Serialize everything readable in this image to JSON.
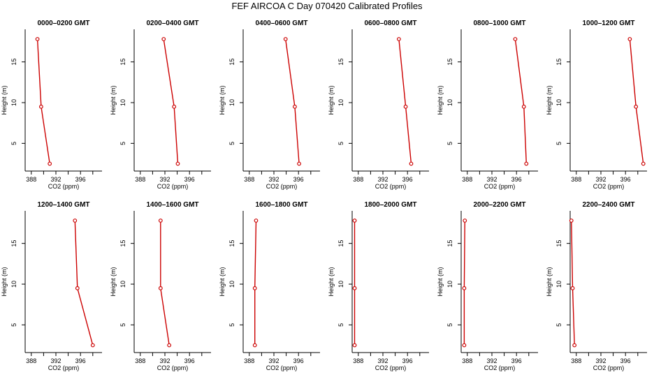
{
  "page": {
    "title": "FEF AIRCOA C  Day 070420  Calibrated Profiles"
  },
  "style": {
    "series_color": "#cc0000",
    "axis_color": "#000000"
  },
  "chart_data": [
    {
      "type": "line",
      "title": "0000–0200 GMT",
      "xlabel": "CO2 (ppm)",
      "ylabel": "Height (m)",
      "xlim": [
        387,
        399.5
      ],
      "ylim": [
        1.6,
        19
      ],
      "x_ticks": [
        388,
        390,
        392,
        394,
        396,
        398
      ],
      "x_tick_labels": [
        "388",
        "",
        "392",
        "",
        "396",
        ""
      ],
      "y_ticks": [
        5,
        10,
        15
      ],
      "y_tick_labels": [
        "5",
        "10",
        "15"
      ],
      "grid": false,
      "series": [
        {
          "points": [
            [
              389.0,
              17.8
            ],
            [
              389.6,
              9.5
            ],
            [
              391.0,
              2.5
            ]
          ]
        }
      ]
    },
    {
      "type": "line",
      "title": "0200–0400 GMT",
      "xlabel": "CO2 (ppm)",
      "ylabel": "Height (m)",
      "xlim": [
        387,
        399.5
      ],
      "ylim": [
        1.6,
        19
      ],
      "x_ticks": [
        388,
        390,
        392,
        394,
        396,
        398
      ],
      "x_tick_labels": [
        "388",
        "",
        "392",
        "",
        "396",
        ""
      ],
      "y_ticks": [
        5,
        10,
        15
      ],
      "y_tick_labels": [
        "5",
        "10",
        "15"
      ],
      "grid": false,
      "series": [
        {
          "points": [
            [
              391.8,
              17.8
            ],
            [
              393.5,
              9.5
            ],
            [
              394.1,
              2.5
            ]
          ]
        }
      ]
    },
    {
      "type": "line",
      "title": "0400–0600 GMT",
      "xlabel": "CO2 (ppm)",
      "ylabel": "Height (m)",
      "xlim": [
        387,
        399.5
      ],
      "ylim": [
        1.6,
        19
      ],
      "x_ticks": [
        388,
        390,
        392,
        394,
        396,
        398
      ],
      "x_tick_labels": [
        "388",
        "",
        "392",
        "",
        "396",
        ""
      ],
      "y_ticks": [
        5,
        10,
        15
      ],
      "y_tick_labels": [
        "5",
        "10",
        "15"
      ],
      "grid": false,
      "series": [
        {
          "points": [
            [
              393.9,
              17.8
            ],
            [
              395.4,
              9.5
            ],
            [
              396.1,
              2.5
            ]
          ]
        }
      ]
    },
    {
      "type": "line",
      "title": "0600–0800 GMT",
      "xlabel": "CO2 (ppm)",
      "ylabel": "Height (m)",
      "xlim": [
        387,
        399.5
      ],
      "ylim": [
        1.6,
        19
      ],
      "x_ticks": [
        388,
        390,
        392,
        394,
        396,
        398
      ],
      "x_tick_labels": [
        "388",
        "",
        "392",
        "",
        "396",
        ""
      ],
      "y_ticks": [
        5,
        10,
        15
      ],
      "y_tick_labels": [
        "5",
        "10",
        "15"
      ],
      "grid": false,
      "series": [
        {
          "points": [
            [
              394.6,
              17.8
            ],
            [
              395.7,
              9.5
            ],
            [
              396.6,
              2.5
            ]
          ]
        }
      ]
    },
    {
      "type": "line",
      "title": "0800–1000 GMT",
      "xlabel": "CO2 (ppm)",
      "ylabel": "Height (m)",
      "xlim": [
        387,
        399.5
      ],
      "ylim": [
        1.6,
        19
      ],
      "x_ticks": [
        388,
        390,
        392,
        394,
        396,
        398
      ],
      "x_tick_labels": [
        "388",
        "",
        "392",
        "",
        "396",
        ""
      ],
      "y_ticks": [
        5,
        10,
        15
      ],
      "y_tick_labels": [
        "5",
        "10",
        "15"
      ],
      "grid": false,
      "series": [
        {
          "points": [
            [
              395.8,
              17.8
            ],
            [
              397.2,
              9.5
            ],
            [
              397.6,
              2.5
            ]
          ]
        }
      ]
    },
    {
      "type": "line",
      "title": "1000–1200 GMT",
      "xlabel": "CO2 (ppm)",
      "ylabel": "Height (m)",
      "xlim": [
        387,
        399.5
      ],
      "ylim": [
        1.6,
        19
      ],
      "x_ticks": [
        388,
        390,
        392,
        394,
        396,
        398
      ],
      "x_tick_labels": [
        "388",
        "",
        "392",
        "",
        "396",
        ""
      ],
      "y_ticks": [
        5,
        10,
        15
      ],
      "y_tick_labels": [
        "5",
        "10",
        "15"
      ],
      "grid": false,
      "series": [
        {
          "points": [
            [
              396.7,
              17.8
            ],
            [
              397.7,
              9.5
            ],
            [
              398.9,
              2.5
            ]
          ]
        }
      ]
    },
    {
      "type": "line",
      "title": "1200–1400 GMT",
      "xlabel": "CO2 (ppm)",
      "ylabel": "Height (m)",
      "xlim": [
        387,
        399.5
      ],
      "ylim": [
        1.6,
        19
      ],
      "x_ticks": [
        388,
        390,
        392,
        394,
        396,
        398
      ],
      "x_tick_labels": [
        "388",
        "",
        "392",
        "",
        "396",
        ""
      ],
      "y_ticks": [
        5,
        10,
        15
      ],
      "y_tick_labels": [
        "5",
        "10",
        "15"
      ],
      "grid": false,
      "series": [
        {
          "points": [
            [
              395.1,
              17.8
            ],
            [
              395.5,
              9.5
            ],
            [
              398.0,
              2.5
            ]
          ]
        }
      ]
    },
    {
      "type": "line",
      "title": "1400–1600 GMT",
      "xlabel": "CO2 (ppm)",
      "ylabel": "Height (m)",
      "xlim": [
        387,
        399.5
      ],
      "ylim": [
        1.6,
        19
      ],
      "x_ticks": [
        388,
        390,
        392,
        394,
        396,
        398
      ],
      "x_tick_labels": [
        "388",
        "",
        "392",
        "",
        "396",
        ""
      ],
      "y_ticks": [
        5,
        10,
        15
      ],
      "y_tick_labels": [
        "5",
        "10",
        "15"
      ],
      "grid": false,
      "series": [
        {
          "points": [
            [
              391.3,
              17.8
            ],
            [
              391.3,
              9.5
            ],
            [
              392.7,
              2.5
            ]
          ]
        }
      ]
    },
    {
      "type": "line",
      "title": "1600–1800 GMT",
      "xlabel": "CO2 (ppm)",
      "ylabel": "Height (m)",
      "xlim": [
        387,
        399.5
      ],
      "ylim": [
        1.6,
        19
      ],
      "x_ticks": [
        388,
        390,
        392,
        394,
        396,
        398
      ],
      "x_tick_labels": [
        "388",
        "",
        "392",
        "",
        "396",
        ""
      ],
      "y_ticks": [
        5,
        10,
        15
      ],
      "y_tick_labels": [
        "5",
        "10",
        "15"
      ],
      "grid": false,
      "series": [
        {
          "points": [
            [
              389.1,
              17.8
            ],
            [
              388.9,
              9.5
            ],
            [
              388.9,
              2.5
            ]
          ]
        }
      ]
    },
    {
      "type": "line",
      "title": "1800–2000 GMT",
      "xlabel": "CO2 (ppm)",
      "ylabel": "Height (m)",
      "xlim": [
        387,
        399.5
      ],
      "ylim": [
        1.6,
        19
      ],
      "x_ticks": [
        388,
        390,
        392,
        394,
        396,
        398
      ],
      "x_tick_labels": [
        "388",
        "",
        "392",
        "",
        "396",
        ""
      ],
      "y_ticks": [
        5,
        10,
        15
      ],
      "y_tick_labels": [
        "5",
        "10",
        "15"
      ],
      "grid": false,
      "series": [
        {
          "points": [
            [
              387.4,
              17.8
            ],
            [
              387.4,
              9.5
            ],
            [
              387.4,
              2.5
            ]
          ]
        }
      ]
    },
    {
      "type": "line",
      "title": "2000–2200 GMT",
      "xlabel": "CO2 (ppm)",
      "ylabel": "Height (m)",
      "xlim": [
        387,
        399.5
      ],
      "ylim": [
        1.6,
        19
      ],
      "x_ticks": [
        388,
        390,
        392,
        394,
        396,
        398
      ],
      "x_tick_labels": [
        "388",
        "",
        "392",
        "",
        "396",
        ""
      ],
      "y_ticks": [
        5,
        10,
        15
      ],
      "y_tick_labels": [
        "5",
        "10",
        "15"
      ],
      "grid": false,
      "series": [
        {
          "points": [
            [
              387.6,
              17.8
            ],
            [
              387.5,
              9.5
            ],
            [
              387.5,
              2.5
            ]
          ]
        }
      ]
    },
    {
      "type": "line",
      "title": "2200–2400 GMT",
      "xlabel": "CO2 (ppm)",
      "ylabel": "Height (m)",
      "xlim": [
        387,
        399.5
      ],
      "ylim": [
        1.6,
        19
      ],
      "x_ticks": [
        388,
        390,
        392,
        394,
        396,
        398
      ],
      "x_tick_labels": [
        "388",
        "",
        "392",
        "",
        "396",
        ""
      ],
      "y_ticks": [
        5,
        10,
        15
      ],
      "y_tick_labels": [
        "5",
        "10",
        "15"
      ],
      "grid": false,
      "series": [
        {
          "points": [
            [
              387.2,
              17.8
            ],
            [
              387.4,
              9.5
            ],
            [
              387.7,
              2.5
            ]
          ]
        }
      ]
    }
  ]
}
